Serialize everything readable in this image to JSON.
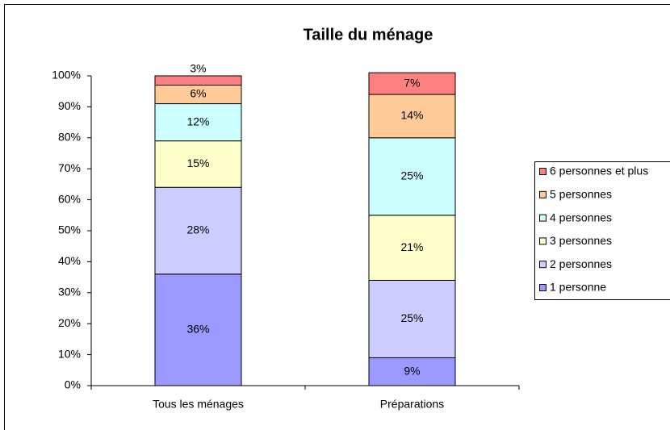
{
  "chart_data": {
    "type": "stacked_bar",
    "title": "Taille du ménage",
    "categories": [
      "Tous les ménages",
      "Préparations"
    ],
    "series": [
      {
        "name": "1 personne",
        "color": "#9999ff",
        "values": [
          36,
          9
        ],
        "value_labels": [
          "36%",
          "9%"
        ]
      },
      {
        "name": "2 personnes",
        "color": "#ccccff",
        "values": [
          28,
          25
        ],
        "value_labels": [
          "28%",
          "25%"
        ]
      },
      {
        "name": "3 personnes",
        "color": "#ffffcc",
        "values": [
          15,
          21
        ],
        "value_labels": [
          "15%",
          "21%"
        ]
      },
      {
        "name": "4 personnes",
        "color": "#ccffff",
        "values": [
          12,
          25
        ],
        "value_labels": [
          "12%",
          "25%"
        ]
      },
      {
        "name": "5 personnes",
        "color": "#ffcc99",
        "values": [
          6,
          14
        ],
        "value_labels": [
          "6%",
          "14%"
        ]
      },
      {
        "name": "6 personnes et plus",
        "color": "#ff8080",
        "values": [
          3,
          7
        ],
        "value_labels": [
          "3%",
          "7%"
        ]
      }
    ],
    "ylim": [
      0,
      100
    ],
    "yticks": [
      {
        "value": 0,
        "label": "0%"
      },
      {
        "value": 10,
        "label": "10%"
      },
      {
        "value": 20,
        "label": "20%"
      },
      {
        "value": 30,
        "label": "30%"
      },
      {
        "value": 40,
        "label": "40%"
      },
      {
        "value": 50,
        "label": "50%"
      },
      {
        "value": 60,
        "label": "60%"
      },
      {
        "value": 70,
        "label": "70%"
      },
      {
        "value": 80,
        "label": "80%"
      },
      {
        "value": 90,
        "label": "90%"
      },
      {
        "value": 100,
        "label": "100%"
      }
    ],
    "grid": false,
    "legend": "right"
  }
}
